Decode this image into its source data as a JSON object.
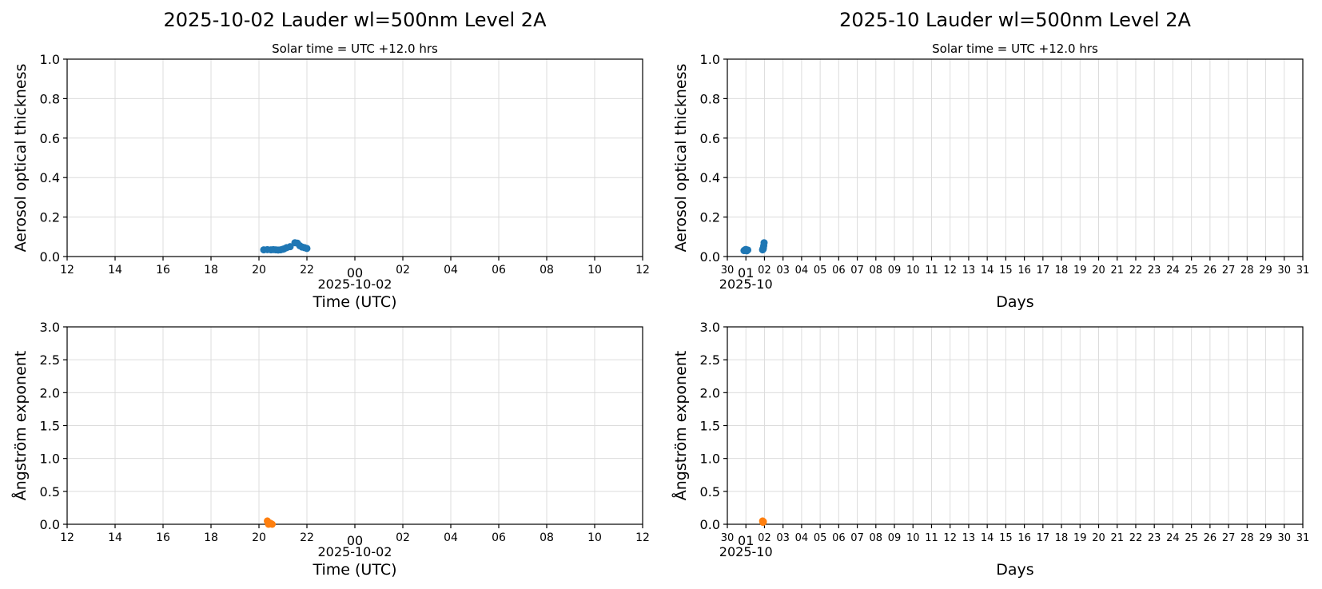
{
  "chart_data": [
    {
      "type": "scatter",
      "title": "2025-10-02  Lauder  wl=500nm  Level 2A",
      "subtitle": "Solar time = UTC +12.0 hrs",
      "xlabel": "Time (UTC)",
      "ylabel": "Aerosol optical thickness",
      "x_date_label": "2025-10-02",
      "x_ticks": [
        "12",
        "14",
        "16",
        "18",
        "20",
        "22",
        "00",
        "02",
        "04",
        "06",
        "08",
        "10",
        "12"
      ],
      "x_unit": "hours since 2025-10-01 12:00 UTC",
      "xlim": [
        0,
        24
      ],
      "ylim": [
        0,
        1.0
      ],
      "y_ticks": [
        "0.0",
        "0.2",
        "0.4",
        "0.6",
        "0.8",
        "1.0"
      ],
      "grid": true,
      "color": "#1f77b4",
      "series": [
        {
          "x": [
            8.2,
            8.35,
            8.5,
            8.6,
            8.7,
            8.8,
            8.9,
            9.0,
            9.05,
            9.15,
            9.3,
            9.5,
            9.6,
            9.7,
            9.8,
            9.9,
            10.0
          ],
          "y": [
            0.034,
            0.035,
            0.034,
            0.035,
            0.034,
            0.033,
            0.034,
            0.037,
            0.039,
            0.045,
            0.05,
            0.07,
            0.068,
            0.055,
            0.048,
            0.045,
            0.041
          ]
        }
      ]
    },
    {
      "type": "scatter",
      "title": "2025-10  Lauder  wl=500nm  Level 2A",
      "subtitle": "Solar time = UTC +12.0 hrs",
      "xlabel": "Days",
      "ylabel": "Aerosol optical thickness",
      "x_date_label": "2025-10",
      "x_ticks": [
        "30",
        "01",
        "02",
        "03",
        "04",
        "05",
        "06",
        "07",
        "08",
        "09",
        "10",
        "11",
        "12",
        "13",
        "14",
        "15",
        "16",
        "17",
        "18",
        "19",
        "20",
        "21",
        "22",
        "23",
        "24",
        "25",
        "26",
        "27",
        "28",
        "29",
        "30",
        "31"
      ],
      "x_unit": "day of October 2025 (0 = Sep 30)",
      "xlim": [
        0,
        31
      ],
      "ylim": [
        0,
        1.0
      ],
      "y_ticks": [
        "0.0",
        "0.2",
        "0.4",
        "0.6",
        "0.8",
        "1.0"
      ],
      "grid": true,
      "color": "#1f77b4",
      "series": [
        {
          "x": [
            0.9,
            0.95,
            1.0,
            1.05,
            1.1,
            1.0,
            1.9,
            1.92,
            1.94,
            1.96,
            1.98,
            1.93
          ],
          "y": [
            0.03,
            0.034,
            0.032,
            0.029,
            0.033,
            0.036,
            0.034,
            0.04,
            0.045,
            0.055,
            0.07,
            0.038
          ]
        }
      ]
    },
    {
      "type": "scatter",
      "title": "",
      "xlabel": "Time (UTC)",
      "ylabel": "Ångström exponent",
      "x_date_label": "2025-10-02",
      "x_ticks": [
        "12",
        "14",
        "16",
        "18",
        "20",
        "22",
        "00",
        "02",
        "04",
        "06",
        "08",
        "10",
        "12"
      ],
      "x_unit": "hours since 2025-10-01 12:00 UTC",
      "xlim": [
        0,
        24
      ],
      "ylim": [
        0,
        3.0
      ],
      "y_ticks": [
        "0.0",
        "0.5",
        "1.0",
        "1.5",
        "2.0",
        "2.5",
        "3.0"
      ],
      "grid": true,
      "color": "#ff7f0e",
      "series": [
        {
          "x": [
            8.35,
            8.45,
            8.55,
            8.4,
            8.5
          ],
          "y": [
            0.05,
            0.02,
            0.0,
            0.0,
            0.01
          ]
        }
      ]
    },
    {
      "type": "scatter",
      "title": "",
      "xlabel": "Days",
      "ylabel": "Ångström exponent",
      "x_date_label": "2025-10",
      "x_ticks": [
        "30",
        "01",
        "02",
        "03",
        "04",
        "05",
        "06",
        "07",
        "08",
        "09",
        "10",
        "11",
        "12",
        "13",
        "14",
        "15",
        "16",
        "17",
        "18",
        "19",
        "20",
        "21",
        "22",
        "23",
        "24",
        "25",
        "26",
        "27",
        "28",
        "29",
        "30",
        "31"
      ],
      "x_unit": "day of October 2025 (0 = Sep 30)",
      "xlim": [
        0,
        31
      ],
      "ylim": [
        0,
        3.0
      ],
      "y_ticks": [
        "0.0",
        "0.5",
        "1.0",
        "1.5",
        "2.0",
        "2.5",
        "3.0"
      ],
      "grid": true,
      "color": "#ff7f0e",
      "series": [
        {
          "x": [
            1.9,
            1.92,
            1.94
          ],
          "y": [
            0.05,
            0.03,
            0.04
          ]
        }
      ]
    }
  ]
}
